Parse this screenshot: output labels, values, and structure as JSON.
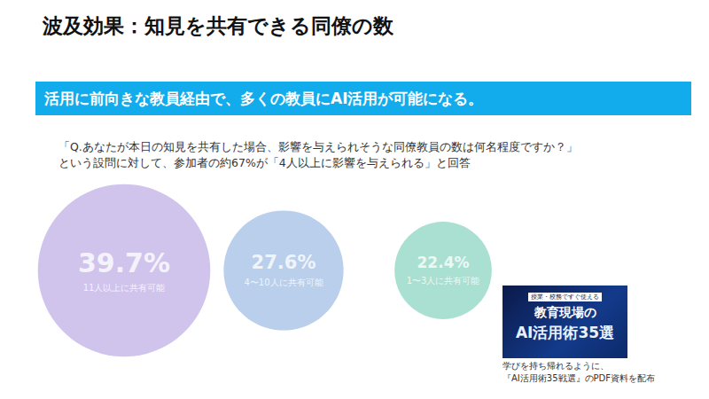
{
  "chart_data": {
    "type": "bubble",
    "title": "波及効果：知見を共有できる同僚の数",
    "subtitle": "活用に前向きな教員経由で、多くの教員にAI活用が可能になる。",
    "annotations": {
      "question": [
        "「Q.あなたが本日の知見を共有した場合、影響を与えられそうな同僚教員の数は何名程度ですか？」",
        "という設問に対して、参加者の約67%が「4人以上に影響を与えられる」と回答"
      ],
      "cover": [
        "授業・校務ですぐ使える",
        "教育現場の",
        "AI活用術35選"
      ],
      "caption": [
        "学びを持ち帰れるように、",
        "『AI活用術35戦選』のPDF資料を配布"
      ]
    },
    "categories": [
      "11人以上に共有可能",
      "4〜10人に共有可能",
      "1〜3人に共有可能"
    ],
    "values": [
      39.7,
      27.6,
      22.4
    ],
    "value_labels": [
      "39.7%",
      "27.6%",
      "22.4%"
    ],
    "colors": [
      "#c4b5e8",
      "#a8c3e6",
      "#95d8c6"
    ],
    "data_labels": true,
    "tick_labels": false
  }
}
